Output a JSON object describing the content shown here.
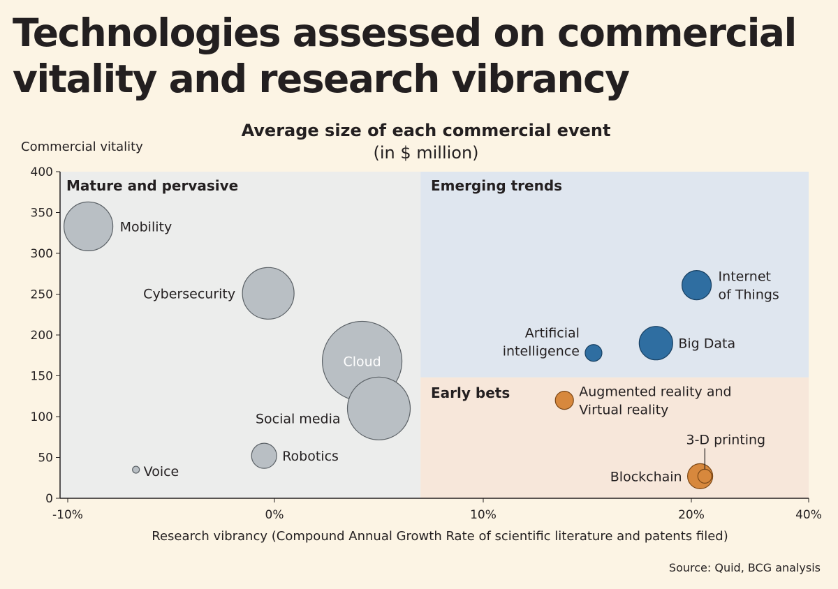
{
  "title": "Technologies assessed on commercial vitality and research vibrancy",
  "source": "Source: Quid, BCG analysis",
  "chart_data": {
    "type": "scatter",
    "subtitle": "Average size of each commercial event",
    "subtitle_unit": "(in $ million)",
    "ylabel": "Commercial vitality",
    "xlabel": "Research vibrancy (Compound Annual Growth Rate of scientific literature and patents filed)",
    "ylim": [
      0,
      400
    ],
    "yticks": [
      0,
      50,
      100,
      150,
      200,
      250,
      300,
      350,
      400
    ],
    "xticks": [
      {
        "label": "-10%",
        "value": -10
      },
      {
        "label": "0%",
        "value": 0
      },
      {
        "label": "10%",
        "value": 10
      },
      {
        "label": "20%",
        "value": 20
      },
      {
        "label": "40%",
        "value": 40
      }
    ],
    "grid": false,
    "quadrants": [
      {
        "label": "Mature and pervasive",
        "x": [
          -11,
          7
        ],
        "y": [
          0,
          400
        ],
        "color": "#ecedec"
      },
      {
        "label": "Emerging trends",
        "x": [
          7,
          40
        ],
        "y": [
          148,
          400
        ],
        "color": "#dfe6ef"
      },
      {
        "label": "Early bets",
        "x": [
          7,
          40
        ],
        "y": [
          0,
          148
        ],
        "color": "#f7e7da"
      }
    ],
    "colors": {
      "mature": "#b9bfc4",
      "emerging": "#2f6ea1",
      "early": "#d7883d"
    },
    "points": [
      {
        "label": "Mobility",
        "x": -9,
        "y": 333,
        "size": 35,
        "group": "mature"
      },
      {
        "label": "Cybersecurity",
        "x": -0.3,
        "y": 251,
        "size": 37,
        "group": "mature"
      },
      {
        "label": "Cloud",
        "x": 4.2,
        "y": 168,
        "size": 57,
        "group": "mature"
      },
      {
        "label": "Social media",
        "x": 5,
        "y": 110,
        "size": 45,
        "group": "mature"
      },
      {
        "label": "Robotics",
        "x": -0.5,
        "y": 52,
        "size": 18,
        "group": "mature"
      },
      {
        "label": "Voice",
        "x": -6.7,
        "y": 35,
        "size": 5,
        "group": "mature"
      },
      {
        "label": "Internet of Things",
        "x": 20.9,
        "y": 261,
        "size": 21,
        "group": "emerging"
      },
      {
        "label": "Big Data",
        "x": 18.3,
        "y": 190,
        "size": 24,
        "group": "emerging"
      },
      {
        "label": "Artificial intelligence",
        "x": 15.3,
        "y": 178,
        "size": 12,
        "group": "emerging"
      },
      {
        "label": "Augmented reality and Virtual reality",
        "x": 13.9,
        "y": 120,
        "size": 13,
        "group": "early"
      },
      {
        "label": "Blockchain",
        "x": 21.5,
        "y": 27,
        "size": 18,
        "group": "early"
      },
      {
        "label": "3-D printing",
        "x": 22.3,
        "y": 27,
        "size": 10,
        "group": "early"
      }
    ]
  }
}
